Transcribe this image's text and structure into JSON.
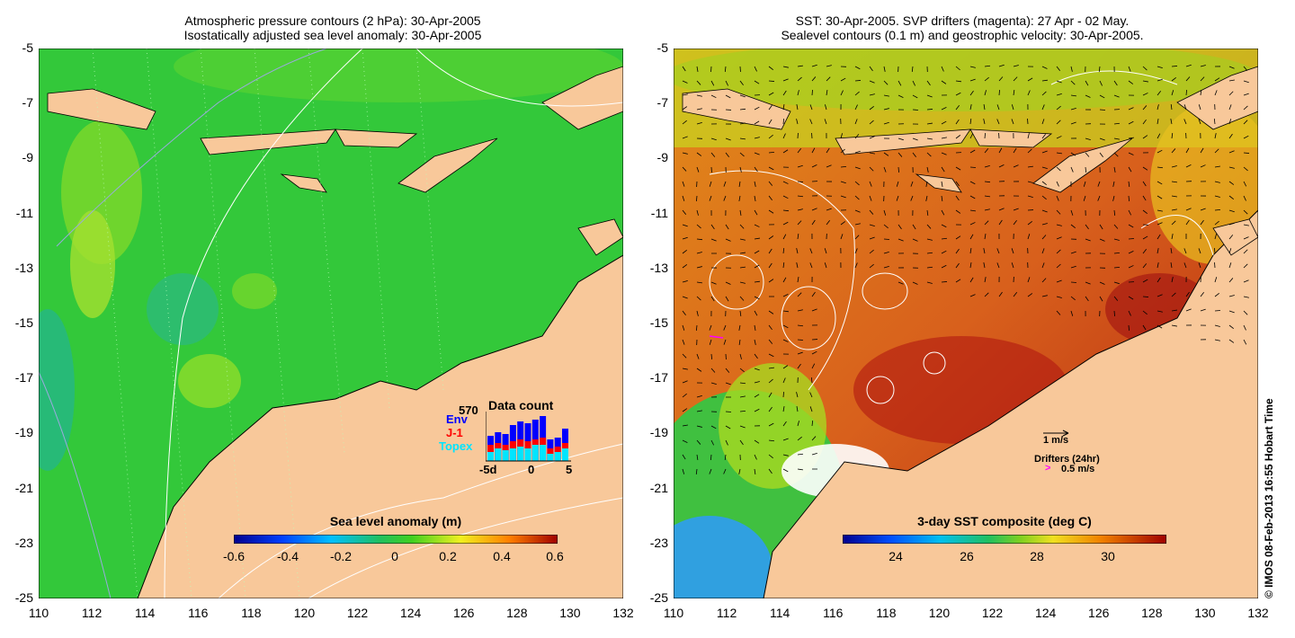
{
  "left_panel": {
    "title_line1": "Atmospheric pressure contours (2 hPa): 30-Apr-2005",
    "title_line2": "Isostatically adjusted sea level anomaly: 30-Apr-2005",
    "colorbar_label": "Sea level anomaly (m)",
    "colorbar_ticks": [
      "-0.6",
      "-0.4",
      "-0.2",
      "0",
      "0.2",
      "0.4",
      "0.6"
    ],
    "inset": {
      "title": "Data count",
      "max_label": "570",
      "legend": [
        "Env",
        "J-1",
        "Topex"
      ],
      "legend_colors": [
        "#0000ff",
        "#ff0000",
        "#00e5ff"
      ],
      "x_ticks": [
        "-5d",
        "0",
        "5"
      ]
    }
  },
  "right_panel": {
    "title_line1": "SST: 30-Apr-2005. SVP drifters (magenta): 27 Apr - 02 May.",
    "title_line2": "Sealevel contours (0.1 m) and geostrophic velocity: 30-Apr-2005.",
    "colorbar_label": "3-day SST composite (deg C)",
    "colorbar_ticks": [
      "24",
      "26",
      "28",
      "30"
    ],
    "velocity_scale": "1 m/s",
    "drifters_label": "Drifters (24hr)",
    "drifters_speed": "0.5 m/s"
  },
  "axes": {
    "y_ticks": [
      "-5",
      "-7",
      "-9",
      "-11",
      "-13",
      "-15",
      "-17",
      "-19",
      "-21",
      "-23",
      "-25"
    ],
    "x_ticks": [
      "110",
      "112",
      "114",
      "116",
      "118",
      "120",
      "122",
      "124",
      "126",
      "128",
      "130",
      "132"
    ]
  },
  "credit": "© IMOS 08-Feb-2013 16:55 Hobart Time",
  "colors": {
    "land": "#f8c89a",
    "ocean_green": "#33cc33",
    "sst_warm": "#d9531e"
  }
}
